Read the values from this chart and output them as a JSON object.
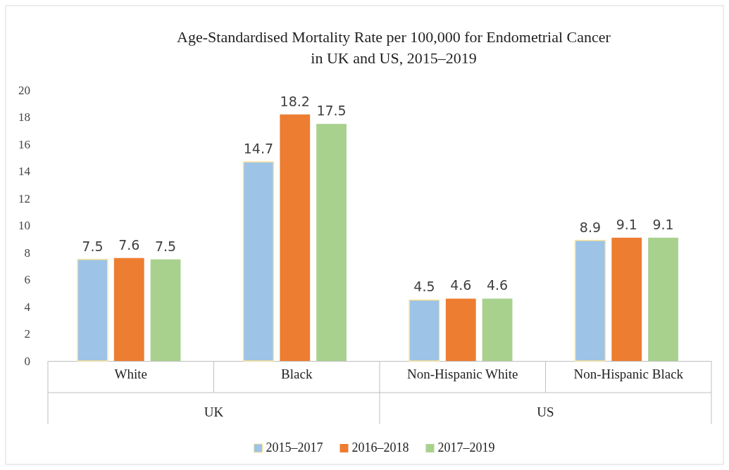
{
  "chart_data": {
    "type": "bar",
    "title": "Age-Standardised Mortality Rate per 100,000 for Endometrial Cancer in UK and US, 2015–2019",
    "categories": [
      "White",
      "Black",
      "Non-Hispanic White",
      "Non-Hispanic Black"
    ],
    "series": [
      {
        "name": "2015–2017",
        "color": "#9dc3e6",
        "values": [
          7.5,
          14.7,
          4.5,
          8.9
        ]
      },
      {
        "name": "2016–2018",
        "color": "#ed7d31",
        "values": [
          7.6,
          18.2,
          4.6,
          9.1
        ]
      },
      {
        "name": "2017–2019",
        "color": "#a9d18e",
        "values": [
          7.5,
          17.5,
          4.6,
          9.1
        ]
      }
    ],
    "ylim": [
      0,
      20
    ],
    "yticks": [
      0,
      2,
      4,
      6,
      8,
      10,
      12,
      14,
      16,
      18,
      20
    ],
    "data_labels": true,
    "legend": "bottom",
    "grid": false,
    "annotations": [
      "UK",
      "US"
    ]
  }
}
